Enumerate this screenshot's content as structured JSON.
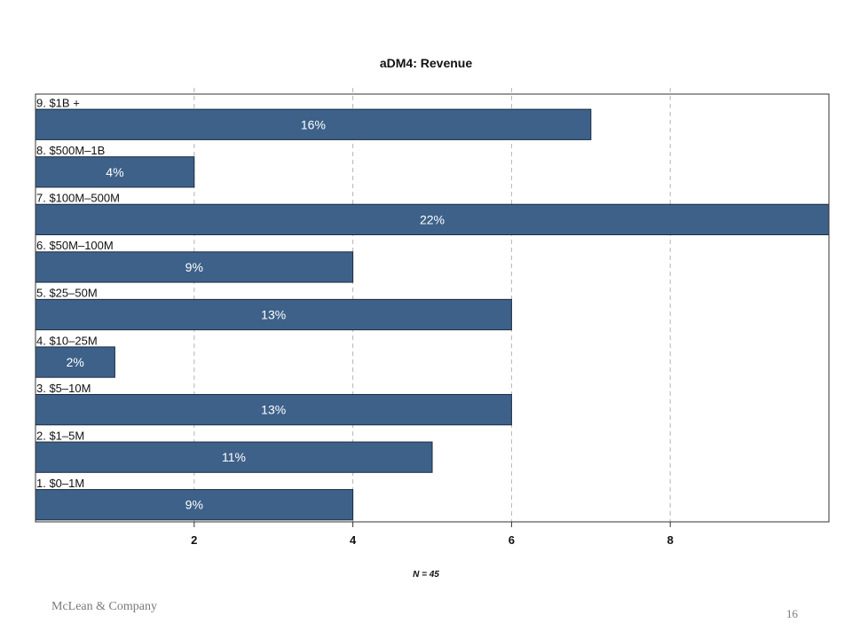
{
  "chart_data": {
    "type": "bar",
    "orientation": "horizontal",
    "title": "aDM4: Revenue",
    "categories": [
      "9. $1B +",
      "8. $500M–1B",
      "7. $100M–500M",
      "6. $50M–100M",
      "5. $25–50M",
      "4. $10–25M",
      "3. $5–10M",
      "2. $1–5M",
      "1. $0–1M"
    ],
    "values": [
      7,
      2,
      10,
      4,
      6,
      1,
      6,
      5,
      4
    ],
    "data_labels": [
      "16%",
      "4%",
      "22%",
      "9%",
      "13%",
      "2%",
      "13%",
      "11%",
      "9%"
    ],
    "x_ticks": [
      2,
      4,
      6,
      8
    ],
    "xlim": [
      0,
      10
    ],
    "grid": "vertical dashed",
    "bar_color": "#3d6189",
    "note": "N = 45"
  },
  "footer": {
    "company": "McLean & Company",
    "page_number": "16"
  }
}
